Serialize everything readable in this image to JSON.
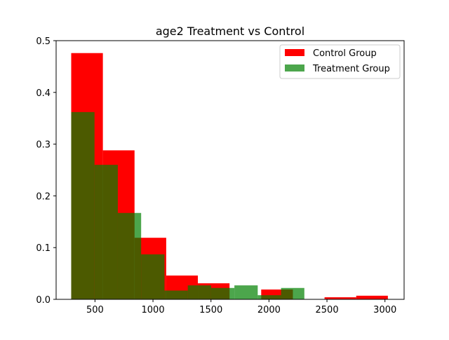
{
  "chart_data": {
    "type": "bar",
    "title": "age2 Treatment vs Control",
    "xlabel": "",
    "ylabel": "",
    "xlim": [
      165,
      3165
    ],
    "ylim": [
      0,
      0.5
    ],
    "xticks": [
      500,
      1000,
      1500,
      2000,
      2500,
      3000
    ],
    "xtick_labels": [
      "500",
      "1000",
      "1500",
      "2000",
      "2500",
      "3000"
    ],
    "yticks": [
      0.0,
      0.1,
      0.2,
      0.3,
      0.4,
      0.5
    ],
    "ytick_labels": [
      "0.0",
      "0.1",
      "0.2",
      "0.3",
      "0.4",
      "0.5"
    ],
    "legend_position": "upper right",
    "series": [
      {
        "name": "Control Group",
        "color": "#ff0000",
        "alpha": 1.0,
        "bins": [
          {
            "x0": 295,
            "x1": 568,
            "value": 0.476
          },
          {
            "x0": 568,
            "x1": 841,
            "value": 0.288
          },
          {
            "x0": 841,
            "x1": 1114,
            "value": 0.119
          },
          {
            "x0": 1114,
            "x1": 1387,
            "value": 0.046
          },
          {
            "x0": 1387,
            "x1": 1660,
            "value": 0.031
          },
          {
            "x0": 1660,
            "x1": 1933,
            "value": 0.0
          },
          {
            "x0": 1933,
            "x1": 2206,
            "value": 0.019
          },
          {
            "x0": 2206,
            "x1": 2479,
            "value": 0.0
          },
          {
            "x0": 2479,
            "x1": 2752,
            "value": 0.004
          },
          {
            "x0": 2752,
            "x1": 3025,
            "value": 0.007
          }
        ]
      },
      {
        "name": "Treatment Group",
        "color": "#008000",
        "alpha": 0.7,
        "bins": [
          {
            "x0": 295,
            "x1": 496,
            "value": 0.362
          },
          {
            "x0": 496,
            "x1": 697,
            "value": 0.26
          },
          {
            "x0": 697,
            "x1": 898,
            "value": 0.167
          },
          {
            "x0": 898,
            "x1": 1099,
            "value": 0.087
          },
          {
            "x0": 1099,
            "x1": 1300,
            "value": 0.017
          },
          {
            "x0": 1300,
            "x1": 1501,
            "value": 0.027
          },
          {
            "x0": 1501,
            "x1": 1702,
            "value": 0.022
          },
          {
            "x0": 1702,
            "x1": 1903,
            "value": 0.027
          },
          {
            "x0": 1903,
            "x1": 2104,
            "value": 0.008
          },
          {
            "x0": 2104,
            "x1": 2305,
            "value": 0.022
          }
        ]
      }
    ]
  }
}
